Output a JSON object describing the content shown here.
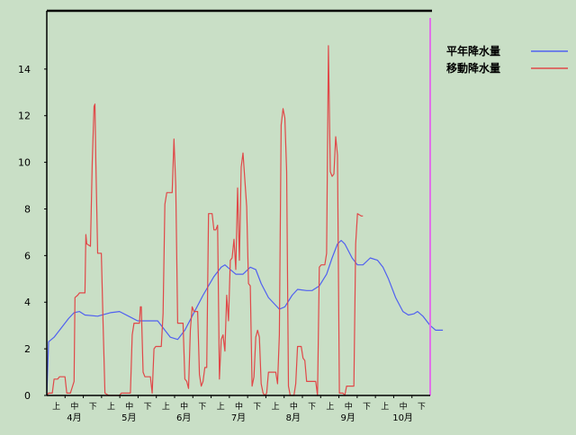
{
  "chart_data": {
    "type": "line",
    "ylim": [
      0,
      16.5
    ],
    "yticks": [
      0,
      2,
      4,
      6,
      8,
      10,
      12,
      14
    ],
    "grid": false,
    "legend_position": "top-right",
    "x_axis": {
      "months": [
        "4月",
        "5月",
        "6月",
        "7月",
        "8月",
        "9月",
        "10月"
      ],
      "periods": [
        "上",
        "中",
        "下"
      ]
    },
    "x_index_range": [
      0,
      211
    ],
    "current_marker_x": 211,
    "colors": {
      "marker": "#e070e8",
      "axis": "#000000"
    },
    "series": [
      {
        "name": "平年降水量",
        "color": "#5060f0",
        "points": [
          [
            0,
            0
          ],
          [
            1,
            2.3
          ],
          [
            4,
            2.5
          ],
          [
            8,
            2.9
          ],
          [
            12,
            3.3
          ],
          [
            15,
            3.55
          ],
          [
            18,
            3.6
          ],
          [
            21,
            3.45
          ],
          [
            28,
            3.4
          ],
          [
            35,
            3.55
          ],
          [
            40,
            3.6
          ],
          [
            45,
            3.4
          ],
          [
            50,
            3.2
          ],
          [
            56,
            3.2
          ],
          [
            61,
            3.2
          ],
          [
            68,
            2.5
          ],
          [
            72,
            2.4
          ],
          [
            76,
            2.8
          ],
          [
            80,
            3.4
          ],
          [
            86,
            4.3
          ],
          [
            92,
            5.1
          ],
          [
            96,
            5.5
          ],
          [
            98,
            5.6
          ],
          [
            101,
            5.4
          ],
          [
            104,
            5.2
          ],
          [
            108,
            5.2
          ],
          [
            112,
            5.5
          ],
          [
            115,
            5.4
          ],
          [
            118,
            4.8
          ],
          [
            122,
            4.2
          ],
          [
            128,
            3.7
          ],
          [
            131,
            3.8
          ],
          [
            135,
            4.3
          ],
          [
            138,
            4.55
          ],
          [
            143,
            4.5
          ],
          [
            146,
            4.5
          ],
          [
            150,
            4.7
          ],
          [
            154,
            5.2
          ],
          [
            157,
            5.9
          ],
          [
            160,
            6.5
          ],
          [
            162,
            6.65
          ],
          [
            164,
            6.5
          ],
          [
            168,
            5.9
          ],
          [
            171,
            5.6
          ],
          [
            174,
            5.6
          ],
          [
            178,
            5.9
          ],
          [
            182,
            5.8
          ],
          [
            185,
            5.5
          ],
          [
            188,
            5.0
          ],
          [
            192,
            4.2
          ],
          [
            196,
            3.6
          ],
          [
            199,
            3.45
          ],
          [
            202,
            3.5
          ],
          [
            204,
            3.6
          ],
          [
            207,
            3.4
          ],
          [
            211,
            3.0
          ],
          [
            214,
            2.8
          ],
          [
            218,
            2.8
          ]
        ]
      },
      {
        "name": "移動降水量",
        "color": "#e04848",
        "points": [
          [
            0,
            0
          ],
          [
            1,
            0.1
          ],
          [
            3,
            0.1
          ],
          [
            4,
            0.7
          ],
          [
            6,
            0.7
          ],
          [
            7,
            0.8
          ],
          [
            10,
            0.8
          ],
          [
            11,
            0.1
          ],
          [
            13,
            0.1
          ],
          [
            15,
            0.6
          ],
          [
            15.5,
            4.2
          ],
          [
            17,
            4.3
          ],
          [
            18,
            4.4
          ],
          [
            21,
            4.4
          ],
          [
            21.5,
            6.9
          ],
          [
            22,
            6.5
          ],
          [
            24,
            6.4
          ],
          [
            25,
            10
          ],
          [
            26,
            12.4
          ],
          [
            26.5,
            12.5
          ],
          [
            27,
            10
          ],
          [
            28,
            6.1
          ],
          [
            30,
            6.1
          ],
          [
            31,
            3
          ],
          [
            32,
            0.1
          ],
          [
            34,
            0
          ],
          [
            40,
            0
          ],
          [
            41,
            0.1
          ],
          [
            46,
            0.1
          ],
          [
            47,
            2.6
          ],
          [
            48,
            3.1
          ],
          [
            51,
            3.1
          ],
          [
            51.5,
            3.8
          ],
          [
            52,
            3.8
          ],
          [
            53,
            1
          ],
          [
            54,
            0.8
          ],
          [
            57,
            0.8
          ],
          [
            58,
            0.1
          ],
          [
            59,
            2
          ],
          [
            60,
            2.1
          ],
          [
            63,
            2.1
          ],
          [
            64,
            3.5
          ],
          [
            65,
            8.2
          ],
          [
            66,
            8.7
          ],
          [
            69,
            8.7
          ],
          [
            70,
            11
          ],
          [
            71,
            9
          ],
          [
            72,
            3.1
          ],
          [
            75,
            3.1
          ],
          [
            76,
            0.7
          ],
          [
            77,
            0.6
          ],
          [
            78,
            0.3
          ],
          [
            79,
            2.8
          ],
          [
            80,
            3.8
          ],
          [
            81,
            3.6
          ],
          [
            83,
            3.6
          ],
          [
            84,
            0.9
          ],
          [
            85,
            0.4
          ],
          [
            86,
            0.6
          ],
          [
            87,
            1.2
          ],
          [
            88,
            1.2
          ],
          [
            89,
            7.8
          ],
          [
            91,
            7.8
          ],
          [
            92,
            7.1
          ],
          [
            93,
            7.1
          ],
          [
            94,
            7.3
          ],
          [
            95,
            0.7
          ],
          [
            96,
            2.4
          ],
          [
            97,
            2.6
          ],
          [
            98,
            1.9
          ],
          [
            99,
            4.3
          ],
          [
            100,
            3.2
          ],
          [
            101,
            5.8
          ],
          [
            102,
            5.9
          ],
          [
            103,
            6.7
          ],
          [
            104,
            5.4
          ],
          [
            105,
            8.9
          ],
          [
            106,
            5.8
          ],
          [
            107,
            9.8
          ],
          [
            108,
            10.4
          ],
          [
            110,
            8.1
          ],
          [
            111,
            4.8
          ],
          [
            112,
            4.7
          ],
          [
            113,
            0.4
          ],
          [
            114,
            0.8
          ],
          [
            115,
            2.5
          ],
          [
            116,
            2.8
          ],
          [
            117,
            2.5
          ],
          [
            118,
            0.5
          ],
          [
            119,
            0.1
          ],
          [
            120,
            0
          ],
          [
            121,
            0.1
          ],
          [
            122,
            1
          ],
          [
            126,
            1
          ],
          [
            127,
            0.5
          ],
          [
            128,
            2.6
          ],
          [
            129,
            11.6
          ],
          [
            130,
            12.3
          ],
          [
            131,
            11.9
          ],
          [
            132,
            9.6
          ],
          [
            133,
            0.4
          ],
          [
            134,
            0
          ],
          [
            136,
            0
          ],
          [
            137,
            0.5
          ],
          [
            138,
            2.1
          ],
          [
            140,
            2.1
          ],
          [
            141,
            1.6
          ],
          [
            142,
            1.5
          ],
          [
            143,
            0.6
          ],
          [
            144,
            0.6
          ],
          [
            148,
            0.6
          ],
          [
            149,
            0
          ],
          [
            150,
            5.5
          ],
          [
            151,
            5.6
          ],
          [
            153,
            5.6
          ],
          [
            154,
            6.1
          ],
          [
            155,
            15
          ],
          [
            156,
            9.6
          ],
          [
            157,
            9.4
          ],
          [
            158,
            9.5
          ],
          [
            159,
            11.1
          ],
          [
            160,
            10.3
          ],
          [
            161,
            0.1
          ],
          [
            163,
            0.1
          ],
          [
            164,
            0
          ],
          [
            165,
            0.4
          ],
          [
            169,
            0.4
          ],
          [
            170,
            6.5
          ],
          [
            171,
            7.8
          ],
          [
            173,
            7.7
          ],
          [
            174,
            7.7
          ]
        ]
      }
    ]
  }
}
